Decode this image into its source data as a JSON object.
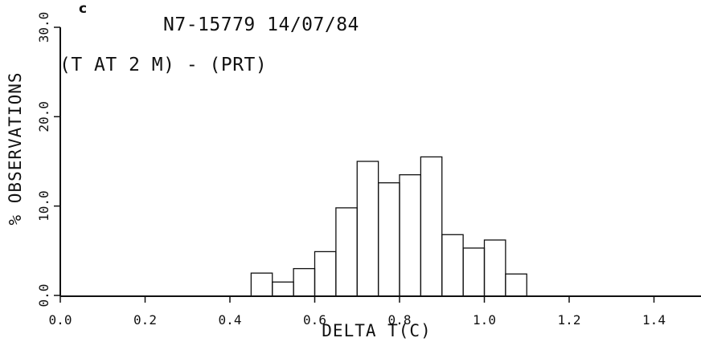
{
  "chart_data": {
    "type": "bar",
    "panel_label": "c",
    "title": "N7-15779 14/07/84",
    "subtitle": "(T AT 2 M) - (PRT)",
    "xlabel": "DELTA T(C)",
    "ylabel": "% OBSERVATIONS",
    "xlim": [
      0.0,
      1.5
    ],
    "ylim": [
      0.0,
      30.0
    ],
    "x_ticks": [
      "0.0",
      "0.2",
      "0.4",
      "0.6",
      "0.8",
      "1.0",
      "1.2",
      "1.4"
    ],
    "y_ticks": [
      "0.0",
      "10.0",
      "20.0",
      "30.0"
    ],
    "bin_width": 0.05,
    "bin_starts": [
      0.45,
      0.5,
      0.55,
      0.6,
      0.65,
      0.7,
      0.75,
      0.8,
      0.85,
      0.9,
      0.95,
      1.0,
      1.05
    ],
    "values": [
      2.5,
      1.5,
      3.0,
      4.9,
      9.8,
      15.0,
      12.6,
      13.5,
      15.5,
      6.8,
      5.3,
      6.2,
      2.4
    ],
    "grid": false
  }
}
